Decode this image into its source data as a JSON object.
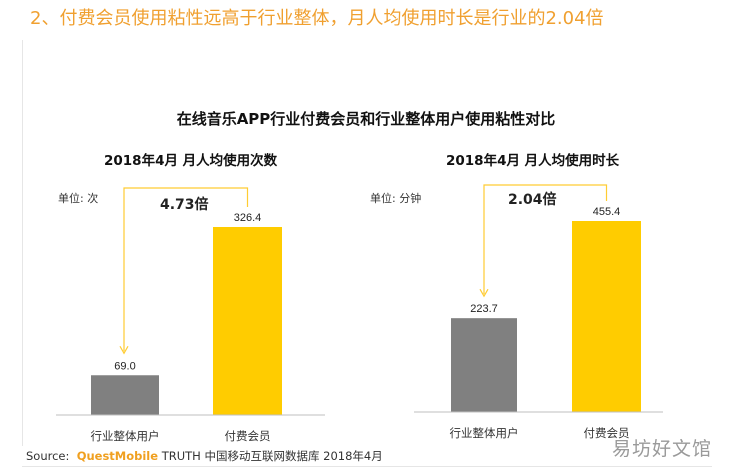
{
  "heading": "2、付费会员使用粘性远高于行业整体，月人均使用时长是行业的2.04倍",
  "main_title": "在线音乐APP行业付费会员和行业整体用户使用粘性对比",
  "colors": {
    "gray_bar": "#808080",
    "yellow_bar": "#ffcc00",
    "connector": "#ffcc33",
    "heading": "#f0a030"
  },
  "chart_data": [
    {
      "type": "bar",
      "title": "2018年4月 月人均使用次数",
      "unit": "单位: 次",
      "categories": [
        "行业整体用户",
        "付费会员"
      ],
      "values": [
        69.0,
        326.4
      ],
      "value_labels": [
        "69.0",
        "326.4"
      ],
      "ratio_label": "4.73倍"
    },
    {
      "type": "bar",
      "title": "2018年4月 月人均使用时长",
      "unit": "单位: 分钟",
      "categories": [
        "行业整体用户",
        "付费会员"
      ],
      "values": [
        223.7,
        455.4
      ],
      "value_labels": [
        "223.7",
        "455.4"
      ],
      "ratio_label": "2.04倍"
    }
  ],
  "source": {
    "prefix": "Source:",
    "brand": "QuestMobile",
    "rest": "TRUTH 中国移动互联网数据库 2018年4月"
  },
  "watermark": "易坊好文馆"
}
